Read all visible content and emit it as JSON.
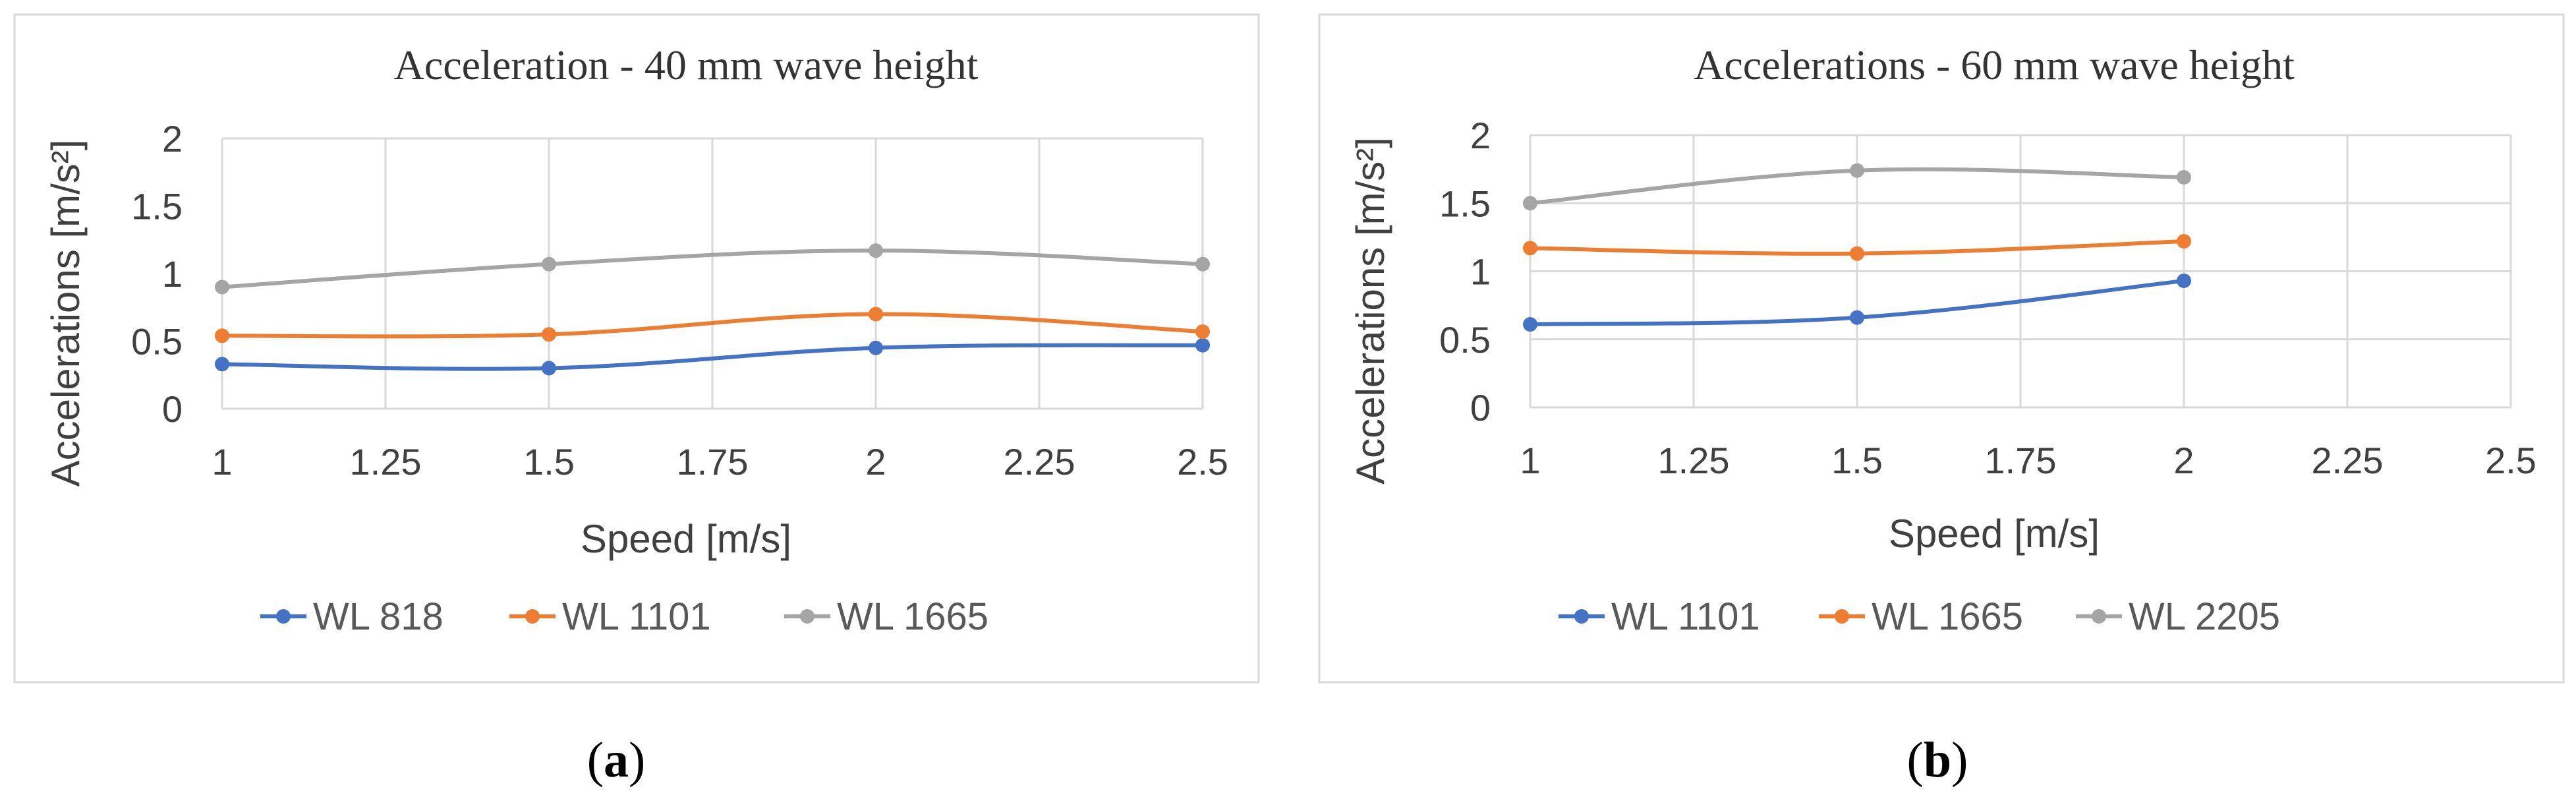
{
  "chart_data": [
    {
      "type": "line",
      "title": "Acceleration -  40 mm wave height",
      "xlabel": "Speed [m/s]",
      "ylabel": "Accelerations [m/s²]",
      "xlim": [
        1,
        2.5
      ],
      "ylim": [
        0,
        2
      ],
      "xticks": [
        "1",
        "1.25",
        "1.5",
        "1.75",
        "2",
        "2.25",
        "2.5"
      ],
      "yticks": [
        "0",
        "0.5",
        "1",
        "1.5",
        "2"
      ],
      "xgrid": true,
      "ygrid": false,
      "legend_position": "bottom",
      "caption": {
        "open": "(",
        "letter": "a",
        "close": ")"
      },
      "series": [
        {
          "name": "WL 818",
          "color": "#4472c4",
          "x": [
            1,
            1.5,
            2,
            2.5
          ],
          "values": [
            0.33,
            0.3,
            0.45,
            0.47
          ]
        },
        {
          "name": "WL 1101",
          "color": "#ed7d31",
          "x": [
            1,
            1.5,
            2,
            2.5
          ],
          "values": [
            0.54,
            0.55,
            0.7,
            0.57
          ]
        },
        {
          "name": "WL 1665",
          "color": "#a5a5a5",
          "x": [
            1,
            1.5,
            2,
            2.5
          ],
          "values": [
            0.9,
            1.07,
            1.17,
            1.07
          ]
        }
      ]
    },
    {
      "type": "line",
      "title": "Accelerations - 60 mm wave height",
      "xlabel": "Speed [m/s]",
      "ylabel": "Accelerations [m/s²]",
      "xlim": [
        1,
        2.5
      ],
      "ylim": [
        0,
        2
      ],
      "xticks": [
        "1",
        "1.25",
        "1.5",
        "1.75",
        "2",
        "2.25",
        "2.5"
      ],
      "yticks": [
        "0",
        "0.5",
        "1",
        "1.5",
        "2"
      ],
      "xgrid": true,
      "ygrid": true,
      "legend_position": "bottom",
      "caption": {
        "open": "(",
        "letter": "b",
        "close": ")"
      },
      "series": [
        {
          "name": "WL 1101",
          "color": "#4472c4",
          "x": [
            1,
            1.5,
            2
          ],
          "values": [
            0.61,
            0.66,
            0.93
          ]
        },
        {
          "name": "WL 1665",
          "color": "#ed7d31",
          "x": [
            1,
            1.5,
            2
          ],
          "values": [
            1.17,
            1.13,
            1.22
          ]
        },
        {
          "name": "WL 2205",
          "color": "#a5a5a5",
          "x": [
            1,
            1.5,
            2
          ],
          "values": [
            1.5,
            1.74,
            1.69
          ]
        }
      ]
    }
  ]
}
